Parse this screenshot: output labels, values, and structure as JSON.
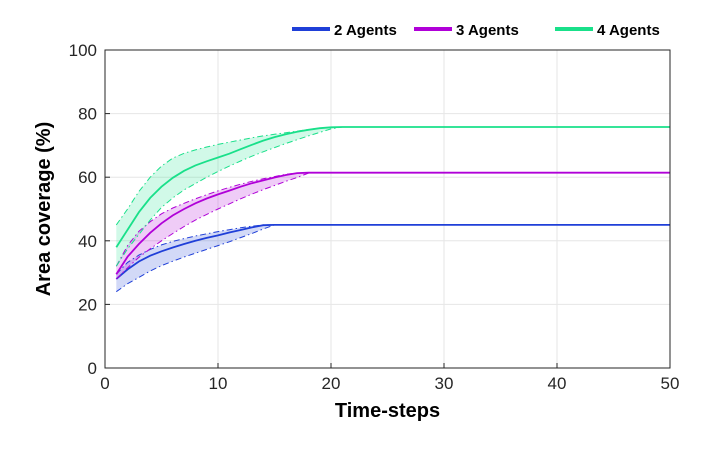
{
  "chart_data": {
    "type": "line",
    "title": "",
    "xlabel": "Time-steps",
    "ylabel": "Area coverage (%)",
    "xlim": [
      0,
      50
    ],
    "ylim": [
      0,
      100
    ],
    "xticks": [
      0,
      10,
      20,
      30,
      40,
      50
    ],
    "yticks": [
      0,
      20,
      40,
      60,
      80,
      100
    ],
    "grid": true,
    "legend_position": "top-right",
    "x": [
      1,
      2,
      3,
      4,
      5,
      6,
      7,
      8,
      9,
      10,
      11,
      12,
      13,
      14,
      15,
      16,
      17,
      18,
      19,
      20,
      21,
      22,
      25,
      30,
      35,
      40,
      45,
      50
    ],
    "series": [
      {
        "name": "2 Agents",
        "color": "#1f3fd8",
        "mean": [
          28,
          31,
          33.5,
          35.3,
          36.7,
          37.9,
          39,
          40,
          40.9,
          41.7,
          42.6,
          43.4,
          44.2,
          44.9,
          45,
          45,
          45,
          45,
          45,
          45,
          45,
          45,
          45,
          45,
          45,
          45,
          45,
          45
        ],
        "upper": [
          29.5,
          33.2,
          35.5,
          37.3,
          38.7,
          39.8,
          40.7,
          41.5,
          42.2,
          42.9,
          43.5,
          44.1,
          44.6,
          45,
          45,
          45,
          45,
          45,
          45,
          45,
          45,
          45,
          45,
          45,
          45,
          45,
          45,
          45
        ],
        "lower": [
          24,
          26.5,
          28.5,
          30.5,
          32.2,
          33.6,
          34.9,
          36.1,
          37.3,
          38.5,
          39.7,
          41,
          42.3,
          43.7,
          45,
          45,
          45,
          45,
          45,
          45,
          45,
          45,
          45,
          45,
          45,
          45,
          45,
          45
        ]
      },
      {
        "name": "3 Agents",
        "color": "#b000d8",
        "mean": [
          29.5,
          35,
          39,
          42.5,
          45.5,
          48,
          50,
          51.8,
          53.3,
          54.6,
          55.8,
          57,
          58.1,
          59,
          59.9,
          60.7,
          61.3,
          61.4,
          61.4,
          61.4,
          61.4,
          61.4,
          61.4,
          61.4,
          61.4,
          61.4,
          61.4,
          61.4
        ],
        "upper": [
          32,
          38.5,
          43,
          46,
          48.5,
          50.3,
          51.8,
          53.2,
          54.5,
          55.7,
          56.8,
          57.8,
          58.7,
          59.5,
          60.2,
          60.9,
          61.3,
          61.4,
          61.4,
          61.4,
          61.4,
          61.4,
          61.4,
          61.4,
          61.4,
          61.4,
          61.4,
          61.4
        ],
        "lower": [
          28,
          31.5,
          34.8,
          37.5,
          40,
          42.3,
          44.5,
          46.5,
          48.3,
          50,
          51.6,
          53.2,
          54.7,
          56.1,
          57.4,
          58.7,
          59.9,
          61.3,
          61.4,
          61.4,
          61.4,
          61.4,
          61.4,
          61.4,
          61.4,
          61.4,
          61.4,
          61.4
        ]
      },
      {
        "name": "4 Agents",
        "color": "#19e08a",
        "mean": [
          38,
          43.5,
          49,
          53.5,
          57,
          59.8,
          62,
          63.7,
          65,
          66.2,
          67.4,
          68.8,
          70.2,
          71.5,
          72.6,
          73.5,
          74.3,
          74.9,
          75.4,
          75.7,
          75.8,
          75.8,
          75.8,
          75.8,
          75.8,
          75.8,
          75.8,
          75.8
        ],
        "upper": [
          45,
          50,
          55.5,
          60,
          63.5,
          66,
          67.5,
          68.6,
          69.5,
          70.3,
          71,
          71.7,
          72.4,
          73,
          73.5,
          74,
          74.5,
          75,
          75.4,
          75.7,
          75.8,
          75.8,
          75.8,
          75.8,
          75.8,
          75.8,
          75.8,
          75.8
        ],
        "lower": [
          32,
          37.5,
          42,
          46.5,
          50.5,
          53.5,
          56,
          58,
          60,
          61.8,
          63.5,
          65.1,
          66.6,
          68,
          69.3,
          70.6,
          71.8,
          73,
          74.1,
          75.2,
          75.8,
          75.8,
          75.8,
          75.8,
          75.8,
          75.8,
          75.8,
          75.8
        ]
      }
    ]
  }
}
